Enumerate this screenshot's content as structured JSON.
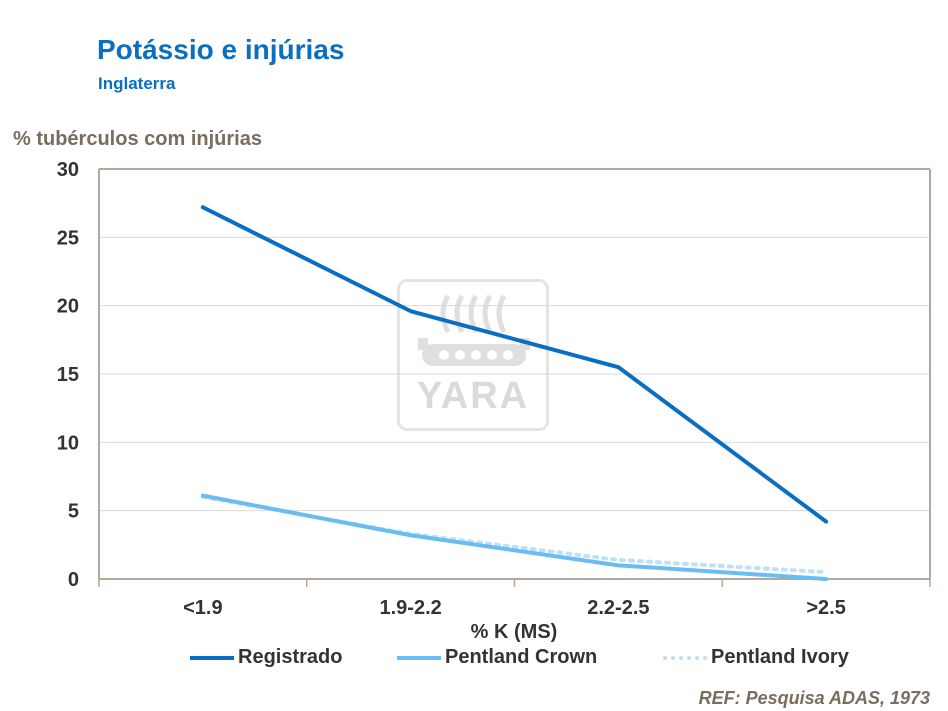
{
  "header": {
    "title": "Potássio e injúrias",
    "subtitle": "Inglaterra"
  },
  "footer": {
    "ref": "REF: Pesquisa ADAS, 1973"
  },
  "logo": {
    "text": "YARA"
  },
  "colors": {
    "registrado": "#0a6fc2",
    "crown": "#69bdf2",
    "ivory": "#bfe1f6",
    "axis": "#b5a898",
    "grid": "#d9d9d9"
  },
  "chart_data": {
    "type": "line",
    "ylabel": "% tubérculos com injúrias",
    "xlabel": "% K (MS)",
    "categories": [
      "<1.9",
      "1.9-2.2",
      "2.2-2.5",
      ">2.5"
    ],
    "ylim": [
      0,
      30
    ],
    "yticks": [
      0,
      5,
      10,
      15,
      20,
      25,
      30
    ],
    "series": [
      {
        "name": "Registrado",
        "values": [
          27.2,
          19.6,
          15.5,
          4.2
        ]
      },
      {
        "name": "Pentland Crown",
        "values": [
          6.1,
          3.2,
          1.0,
          0.0
        ]
      },
      {
        "name": "Pentland Ivory",
        "values": [
          6.0,
          3.3,
          1.4,
          0.5
        ]
      }
    ],
    "legend_position": "bottom"
  }
}
